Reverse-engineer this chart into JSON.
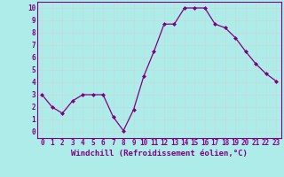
{
  "x": [
    0,
    1,
    2,
    3,
    4,
    5,
    6,
    7,
    8,
    9,
    10,
    11,
    12,
    13,
    14,
    15,
    16,
    17,
    18,
    19,
    20,
    21,
    22,
    23
  ],
  "y": [
    3.0,
    2.0,
    1.5,
    2.5,
    3.0,
    3.0,
    3.0,
    1.2,
    0.1,
    1.8,
    4.5,
    6.5,
    8.7,
    8.7,
    10.0,
    10.0,
    10.0,
    8.7,
    8.4,
    7.6,
    6.5,
    5.5,
    4.7,
    4.1
  ],
  "line_color": "#800080",
  "marker": "D",
  "marker_size": 2,
  "bg_color": "#aeecea",
  "grid_color": "#c0dede",
  "xlabel": "Windchill (Refroidissement éolien,°C)",
  "xlabel_color": "#800080",
  "tick_color": "#800080",
  "xlim": [
    -0.5,
    23.5
  ],
  "ylim": [
    -0.5,
    10.5
  ],
  "xticks": [
    0,
    1,
    2,
    3,
    4,
    5,
    6,
    7,
    8,
    9,
    10,
    11,
    12,
    13,
    14,
    15,
    16,
    17,
    18,
    19,
    20,
    21,
    22,
    23
  ],
  "yticks": [
    0,
    1,
    2,
    3,
    4,
    5,
    6,
    7,
    8,
    9,
    10
  ],
  "tick_fontsize": 5.5,
  "xlabel_fontsize": 6.5,
  "spine_color": "#800080"
}
